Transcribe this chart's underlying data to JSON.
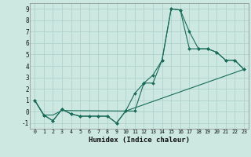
{
  "xlabel": "Humidex (Indice chaleur)",
  "xlim": [
    -0.5,
    23.5
  ],
  "ylim": [
    -1.5,
    9.5
  ],
  "bg_color": "#cce8e0",
  "grid_color": "#aacfc8",
  "line_color": "#1a6b5a",
  "line1_x": [
    0,
    1,
    2,
    3,
    4,
    5,
    6,
    7,
    8,
    9,
    10,
    11,
    12,
    13,
    14,
    15,
    16,
    17,
    18,
    19,
    20,
    21,
    22,
    23
  ],
  "line1_y": [
    1.0,
    -0.3,
    -0.8,
    0.2,
    -0.2,
    -0.4,
    -0.4,
    -0.4,
    -0.4,
    -1.0,
    0.05,
    0.05,
    2.5,
    2.5,
    4.5,
    9.0,
    8.9,
    7.0,
    5.5,
    5.5,
    5.2,
    4.5,
    4.5,
    3.7
  ],
  "line2_x": [
    0,
    1,
    2,
    3,
    4,
    5,
    6,
    7,
    8,
    9,
    10,
    11,
    12,
    13,
    14,
    15,
    16,
    17,
    18,
    19,
    20,
    21,
    22,
    23
  ],
  "line2_y": [
    1.0,
    -0.3,
    -0.8,
    0.2,
    -0.2,
    -0.4,
    -0.4,
    -0.4,
    -0.4,
    -1.0,
    0.05,
    1.6,
    2.5,
    3.2,
    4.5,
    9.0,
    8.9,
    5.5,
    5.5,
    5.5,
    5.2,
    4.5,
    4.5,
    3.7
  ],
  "line3_x": [
    0,
    1,
    2,
    3,
    10,
    23
  ],
  "line3_y": [
    1.0,
    -0.3,
    -0.3,
    0.1,
    0.05,
    3.7
  ],
  "xticks": [
    0,
    1,
    2,
    3,
    4,
    5,
    6,
    7,
    8,
    9,
    10,
    11,
    12,
    13,
    14,
    15,
    16,
    17,
    18,
    19,
    20,
    21,
    22,
    23
  ],
  "yticks": [
    -1,
    0,
    1,
    2,
    3,
    4,
    5,
    6,
    7,
    8,
    9
  ]
}
